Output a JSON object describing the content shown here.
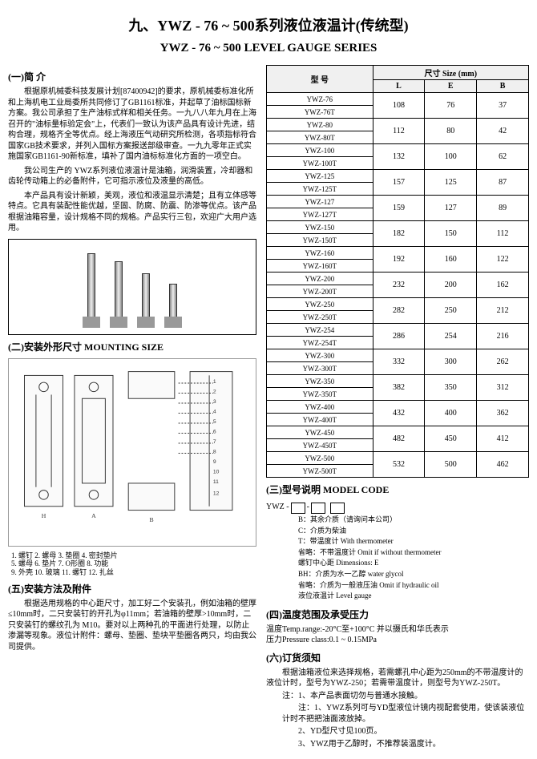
{
  "title_cn": "九、YWZ - 76 ~ 500系列液位液温计(传统型)",
  "title_en": "YWZ - 76 ~ 500 LEVEL GAUGE SERIES",
  "sec1_title": "(一)简 介",
  "sec1_p1": "根据原机械委科技发展计划[87400942]的要求，原机械委标准化所和上海机电工业局委所共同修订了GB1161标准，并起草了油标国标新方案。我公司承担了生产油标式样和相关任务。一九八八年九月在上海召开的\"油标量标验定会\"上，代表们一致认为该产品具有设计先进，结构合理，规格齐全等优点。经上海液压气动研究所检测，各项指标符合国家GB技术要求，并列入国标方案报送部级审查。一九九零年正式实施国家GB1161-90新标准，填补了国内油标标准化方面的一项空白。",
  "sec1_p2": "我公司生产的 YWZ系列液位液温计是油箱，润滑装置，冷却器和齿轮传动箱上的必备附件，它可指示液位及液量的高低。",
  "sec1_p3": "本产品具有设计新颖，美观，液位和液温显示清楚；且有立体感等特点。它具有装配性能优越，坚固、防腐、防震、防渗等优点。该产品根据油箱容量，设计规格不同的规格。产品实行三包，欢迎广大用户选用。",
  "sec2_title": "(二)安装外形尺寸   MOUNTING SIZE",
  "sec5_title": "(五)安装方法及附件",
  "sec5_p1": "根据选用规格的中心距尺寸，加工好二个安装孔，例如油箱的壁厚≤10mm时，二只安装钉的开孔为φ11mm；若油箱的壁厚>10mm时，二只安装钉的螺纹孔为 M10。要对以上两种孔的平面进行处理，以防止渗漏等现象。液位计附件：螺母、垫圈、垫块平垫圈各两只，均由我公司提供。",
  "dia_labels": "1. 螺钉 2. 螺母 3. 垫圈 4. 密封垫片\n5. 螺母 6. 垫片 7. O形圈 8. 功能\n9. 外壳 10. 玻璃 11. 螺钉 12. 扎丝",
  "table": {
    "head_model": "型 号",
    "head_size": "尺寸 Size (mm)",
    "head_L": "L",
    "head_E": "E",
    "head_B": "B",
    "rows": [
      [
        "YWZ-76",
        "YWZ-76T",
        "108",
        "76",
        "37"
      ],
      [
        "YWZ-80",
        "YWZ-80T",
        "112",
        "80",
        "42"
      ],
      [
        "YWZ-100",
        "YWZ-100T",
        "132",
        "100",
        "62"
      ],
      [
        "YWZ-125",
        "YWZ-125T",
        "157",
        "125",
        "87"
      ],
      [
        "YWZ-127",
        "YWZ-127T",
        "159",
        "127",
        "89"
      ],
      [
        "YWZ-150",
        "YWZ-150T",
        "182",
        "150",
        "112"
      ],
      [
        "YWZ-160",
        "YWZ-160T",
        "192",
        "160",
        "122"
      ],
      [
        "YWZ-200",
        "YWZ-200T",
        "232",
        "200",
        "162"
      ],
      [
        "YWZ-250",
        "YWZ-250T",
        "282",
        "250",
        "212"
      ],
      [
        "YWZ-254",
        "YWZ-254T",
        "286",
        "254",
        "216"
      ],
      [
        "YWZ-300",
        "YWZ-300T",
        "332",
        "300",
        "262"
      ],
      [
        "YWZ-350",
        "YWZ-350T",
        "382",
        "350",
        "312"
      ],
      [
        "YWZ-400",
        "YWZ-400T",
        "432",
        "400",
        "362"
      ],
      [
        "YWZ-450",
        "YWZ-450T",
        "482",
        "450",
        "412"
      ],
      [
        "YWZ-500",
        "YWZ-500T",
        "532",
        "500",
        "462"
      ]
    ]
  },
  "sec3_title": "(三)型号说明   MODEL CODE",
  "code_prefix": "YWZ -",
  "code_leg1": "B：其余介质（请询问本公司）",
  "code_leg2": "C：介质为柴油",
  "code_leg3": "T：带温度计 With thermometer",
  "code_leg4": "省略：不带温度计 Omit if without thermometer",
  "code_leg5": "螺钉中心距 Dimensions: E",
  "code_leg6": "BH：介质为水一乙醇 water glycol",
  "code_leg7": "省略：介质为一般液压油 Omit if hydraulic oil",
  "code_leg8": "液位液温计 Level gauge",
  "sec4_title": "(四)温度范围及承受压力",
  "sec4_p1": "温度Temp.range:-20°C至+100°C 并以摄氏和华氏表示",
  "sec4_p2": "压力Pressure class:0.1 ~ 0.15MPa",
  "sec6_title": "(六)订货须知",
  "sec6_p1": "根据油箱液位来选择规格，若需螺孔中心距为250mm的不带温度计的液位计时，型号为YWZ-250；若需带温度计，则型号为YWZ-250T。",
  "sec6_p2": "注：1、本产品表面切勿与普通水接触。",
  "sec6_n1": "注：1、YWZ系列可与YD型液位计镜内视配套使用，使该装液位计时不把把油面液放掉。",
  "sec6_n2": "2、YD型尺寸见100页。",
  "sec6_n3": "3、YWZ用于乙醇时，不推荐装温度计。"
}
